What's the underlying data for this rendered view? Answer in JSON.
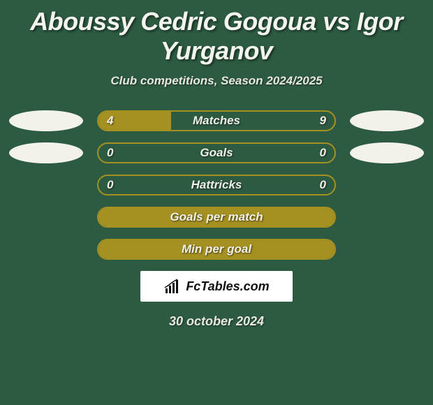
{
  "background_color": "#2d5b41",
  "bar_border_color": "#a59022",
  "bar_fill_color": "#a59022",
  "flag_color": "#f2f2eb",
  "title": "Aboussy Cedric Gogoua vs Igor Yurganov",
  "title_fontsize": 36,
  "subtitle": "Club competitions, Season 2024/2025",
  "subtitle_fontsize": 17,
  "branding": "FcTables.com",
  "date": "30 october 2024",
  "rows": [
    {
      "label": "Matches",
      "left": "4",
      "right": "9",
      "left_num": 4,
      "right_num": 9,
      "show_flags": true,
      "show_values": true
    },
    {
      "label": "Goals",
      "left": "0",
      "right": "0",
      "left_num": 0,
      "right_num": 0,
      "show_flags": true,
      "show_values": true
    },
    {
      "label": "Hattricks",
      "left": "0",
      "right": "0",
      "left_num": 0,
      "right_num": 0,
      "show_flags": false,
      "show_values": true
    },
    {
      "label": "Goals per match",
      "left": "",
      "right": "",
      "left_num": 0,
      "right_num": 0,
      "show_flags": false,
      "show_values": false
    },
    {
      "label": "Min per goal",
      "left": "",
      "right": "",
      "left_num": 0,
      "right_num": 0,
      "show_flags": false,
      "show_values": false
    }
  ]
}
